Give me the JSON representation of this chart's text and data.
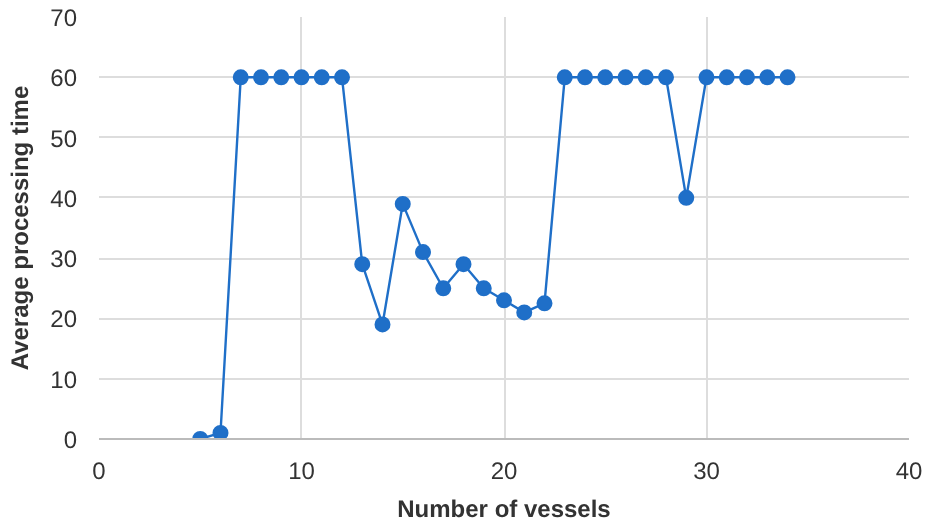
{
  "chart_data": {
    "type": "line",
    "xlabel": "Number of vessels",
    "ylabel": "Average processing time",
    "x": [
      5,
      6,
      7,
      8,
      9,
      10,
      11,
      12,
      13,
      14,
      15,
      16,
      17,
      18,
      19,
      20,
      21,
      22,
      23,
      24,
      25,
      26,
      27,
      28,
      29,
      30,
      31,
      32,
      33,
      34
    ],
    "series": [
      {
        "color": "#1f6fc8",
        "values": [
          0,
          1,
          60,
          60,
          60,
          60,
          60,
          60,
          29,
          19,
          39,
          31,
          25,
          29,
          25,
          23,
          21,
          22.5,
          60,
          60,
          60,
          60,
          60,
          60,
          40,
          60,
          60,
          60,
          60,
          60
        ]
      }
    ],
    "xlim": [
      0,
      40
    ],
    "xticks": [
      0,
      10,
      20,
      30,
      40
    ],
    "ylim": [
      0,
      70
    ],
    "yticks": [
      0,
      10,
      20,
      30,
      40,
      50,
      60,
      70
    ],
    "grid": true,
    "marker": "circle",
    "line_style": "solid"
  }
}
